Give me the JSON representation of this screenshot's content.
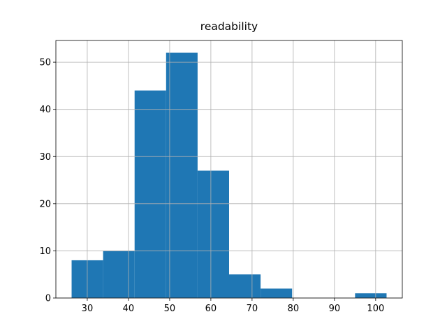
{
  "chart_data": {
    "type": "histogram",
    "title": "readability",
    "bins": [
      26.2,
      33.845,
      41.49,
      49.135,
      56.78,
      64.425,
      72.07,
      79.715,
      87.36,
      95.005,
      102.65
    ],
    "values": [
      8,
      10,
      44,
      52,
      27,
      5,
      2,
      0,
      0,
      1
    ],
    "color": "#1f77b4",
    "xlim": [
      22.38,
      106.47
    ],
    "xticks": [
      30,
      40,
      50,
      60,
      70,
      80,
      90,
      100
    ],
    "ylim": [
      0,
      54.6
    ],
    "yticks": [
      0,
      10,
      20,
      30,
      40,
      50
    ],
    "grid": true
  }
}
